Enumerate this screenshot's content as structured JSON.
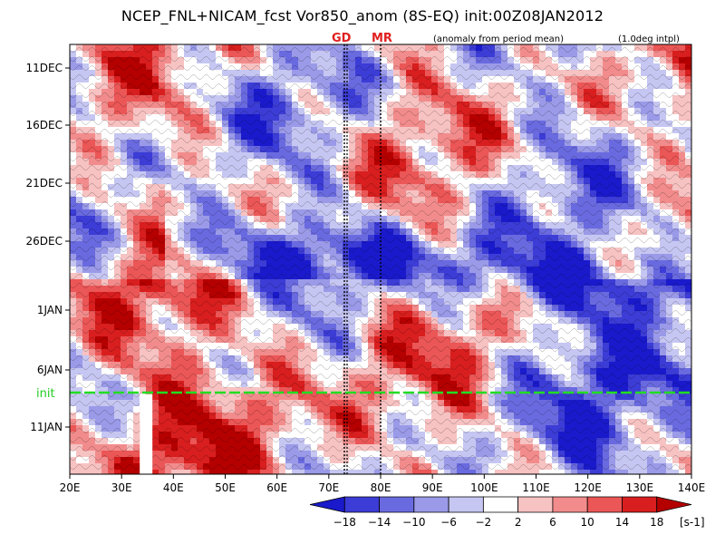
{
  "header": {
    "title": "NCEP_FNL+NICAM_fcst Vor850_anom (8S-EQ) init:00Z08JAN2012",
    "subtitle_anomaly": "(anomaly from period mean)",
    "subtitle_interp": "(1.0deg intpl)",
    "station_1": "GD",
    "station_2": "MR"
  },
  "chart_data": {
    "type": "heatmap",
    "title": "NCEP_FNL+NICAM_fcst Vor850_anom (8S-EQ) init:00Z08JAN2012",
    "xlabel": "",
    "ylabel": "",
    "x_ticks": [
      "20E",
      "30E",
      "40E",
      "50E",
      "60E",
      "70E",
      "80E",
      "90E",
      "100E",
      "110E",
      "120E",
      "130E",
      "140E"
    ],
    "xlim": [
      20,
      140
    ],
    "y_ticks": [
      "11DEC",
      "16DEC",
      "21DEC",
      "26DEC",
      "1JAN",
      "6JAN",
      "11JAN"
    ],
    "init_label": "init",
    "station_lines": [
      {
        "name": "GD",
        "lon": 73
      },
      {
        "name": "MR",
        "lon": 80
      }
    ],
    "colorbar": {
      "levels": [
        -18,
        -14,
        -10,
        -6,
        -2,
        2,
        6,
        10,
        14,
        18
      ],
      "labels": [
        "−18",
        "−14",
        "−10",
        "−6",
        "−2",
        "2",
        "6",
        "10",
        "14",
        "18"
      ],
      "colors": [
        "#1a1acc",
        "#3c3cd6",
        "#6a6ae0",
        "#9a9ae8",
        "#c6c6f2",
        "#ffffff",
        "#f7c2c2",
        "#f28c8c",
        "#eb5656",
        "#d81e1e",
        "#b50000"
      ],
      "unit": "[s-1]"
    },
    "grid": false
  }
}
